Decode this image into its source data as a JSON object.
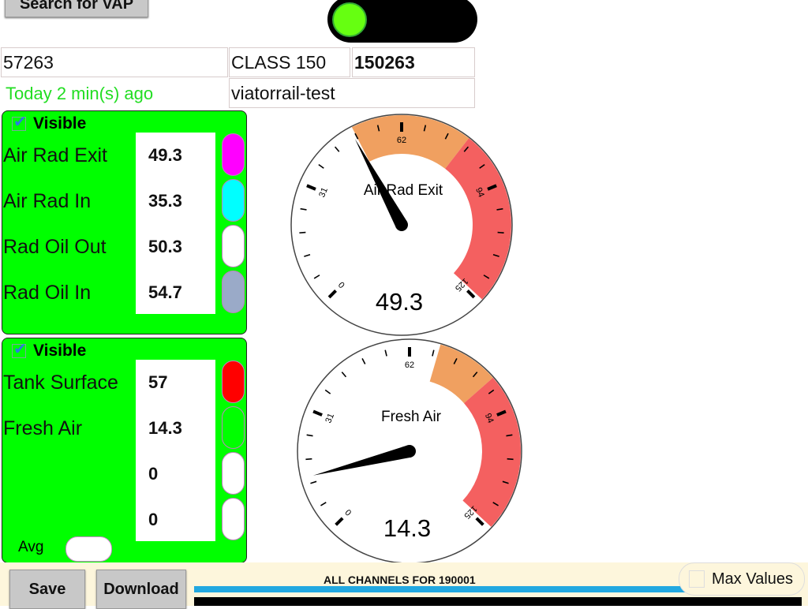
{
  "header": {
    "search_button": "Search for VAP",
    "toggle_on": true,
    "toggle_knob_color": "#66ff11"
  },
  "info": {
    "id": "57263",
    "class": "CLASS 150",
    "unit": "150263",
    "updated": "Today 2 min(s) ago",
    "source": "viatorrail-test"
  },
  "panels": [
    {
      "visible_label": "Visible",
      "visible": true,
      "channels": [
        {
          "label": "Air Rad Exit",
          "value": "49.3",
          "color": "#ff00ff"
        },
        {
          "label": "Air Rad In",
          "value": "35.3",
          "color": "#00ffff"
        },
        {
          "label": "Rad Oil Out",
          "value": "50.3",
          "color": "#ffffff"
        },
        {
          "label": "Rad Oil In",
          "value": "54.7",
          "color": "#9aaac8"
        }
      ]
    },
    {
      "visible_label": "Visible",
      "visible": true,
      "avg_label": "Avg",
      "channels": [
        {
          "label": "Tank Surface",
          "value": "57",
          "color": "#ff0000"
        },
        {
          "label": "Fresh Air",
          "value": "14.3",
          "color": "#00ff00"
        },
        {
          "label": "",
          "value": "0",
          "color": "#ffffff"
        },
        {
          "label": "",
          "value": "0",
          "color": "#ffffff"
        }
      ]
    }
  ],
  "gauges": [
    {
      "title": "Air Rad Exit",
      "value": 49.3,
      "value_text": "49.3",
      "min": 0,
      "max": 125,
      "tick_labels": [
        "0",
        "31",
        "62",
        "94",
        "125"
      ],
      "warn": [
        50,
        80
      ],
      "danger": [
        80,
        124
      ]
    },
    {
      "title": "Fresh Air",
      "value": 14.3,
      "value_text": "14.3",
      "min": 0,
      "max": 125,
      "tick_labels": [
        "0",
        "31",
        "62",
        "94",
        "125"
      ],
      "warn": [
        70,
        85
      ],
      "danger": [
        85,
        124
      ]
    }
  ],
  "colors": {
    "warn": "#f0a060",
    "danger": "#f46060",
    "panel": "#00ff00",
    "updated": "#22dd22"
  },
  "footer": {
    "save": "Save",
    "download": "Download",
    "tab_title": "ALL CHANNELS FOR 190001",
    "max_values": "Max Values",
    "max_values_checked": false
  }
}
